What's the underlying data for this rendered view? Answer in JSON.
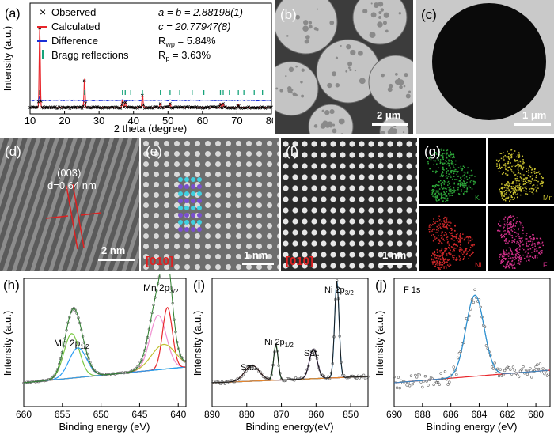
{
  "figure": {
    "panel_labels": [
      "(a)",
      "(b)",
      "(c)",
      "(d)",
      "(e)",
      "(f)",
      "(g)",
      "(h)",
      "(i)",
      "(j)"
    ],
    "colors": {
      "observed": "#000000",
      "calculated": "#e8252a",
      "difference": "#1a2fd6",
      "bragg": "#16a37a",
      "fit_blue": "#2c8fcf",
      "background_red": "#e8252a",
      "eds_K": "#2ea83a",
      "eds_Mn": "#c8c030",
      "eds_Ni": "#d0282a",
      "eds_F": "#d0308a",
      "zone_axis": "#e02020"
    }
  },
  "panel_a": {
    "ylabel": "Intensity (a.u.)",
    "xlabel": "2 theta (degree)",
    "xticks": [
      "10",
      "20",
      "30",
      "40",
      "50",
      "60",
      "70",
      "80"
    ],
    "legend": [
      "Observed",
      "Calculated",
      "Difference",
      "Bragg reflections"
    ],
    "legend_markers": [
      "×",
      "—",
      "—",
      "|"
    ],
    "params": {
      "ab": "a = b = 2.88198(1)",
      "c": "c = 20.77947(8)",
      "rwp": "R",
      "rwp_sub": "wp",
      "rwp_val": " = 5.84%",
      "rp": "R",
      "rp_sub": "p",
      "rp_val": " = 3.63%"
    }
  },
  "panel_b": {
    "scale": "2 μm"
  },
  "panel_c": {
    "scale": "1 μm"
  },
  "panel_d": {
    "plane": "(003)",
    "dspacing": "d=0.64 nm",
    "scale": "2 nm"
  },
  "panel_e": {
    "zone": "[010]",
    "scale": "1 nm"
  },
  "panel_f": {
    "zone": "[010]",
    "scale": "1 nm"
  },
  "panel_g": {
    "maps": [
      "K",
      "Mn",
      "Ni",
      "F"
    ]
  },
  "panel_h": {
    "ylabel": "Intensity (a.u.)",
    "xlabel": "Binding energy (eV)",
    "xticks": [
      "660",
      "655",
      "650",
      "645",
      "640"
    ],
    "peak1": "Mn 2p",
    "peak1_sub": "1/2",
    "peak2": "Mn 2p",
    "peak2_sub": "3/2"
  },
  "panel_i": {
    "ylabel": "Intensity (a.u.)",
    "xlabel": "Binding energy(eV)",
    "xticks": [
      "890",
      "880",
      "870",
      "860",
      "850"
    ],
    "sat1": "Sat.",
    "peak1": "Ni 2p",
    "peak1_sub": "1/2",
    "sat2": "Sat.",
    "peak2": "Ni 2p",
    "peak2_sub": "3/2"
  },
  "panel_j": {
    "ylabel": "Intensity (a.u.)",
    "xlabel": "Binding energy (eV)",
    "xticks": [
      "690",
      "688",
      "686",
      "684",
      "682",
      "680"
    ],
    "title": "F 1s"
  },
  "chart_data": [
    {
      "type": "line",
      "title": "",
      "xlabel": "2 theta (degree)",
      "ylabel": "Intensity (a.u.)",
      "xlim": [
        10,
        80
      ],
      "series": [
        {
          "name": "Observed",
          "peaks_x": [
            12.8,
            25.8,
            36.8,
            37.6,
            42.6,
            47.8,
            50.6,
            65.2,
            66.0,
            70.4
          ],
          "peaks_rel": [
            1.0,
            0.36,
            0.1,
            0.07,
            0.16,
            0.05,
            0.05,
            0.05,
            0.05,
            0.04
          ]
        },
        {
          "name": "Calculated",
          "peaks_x": [
            12.8,
            25.8,
            36.8,
            37.6,
            42.6,
            47.8,
            50.6,
            65.2,
            66.0,
            70.4
          ],
          "peaks_rel": [
            1.0,
            0.36,
            0.1,
            0.07,
            0.16,
            0.05,
            0.05,
            0.05,
            0.05,
            0.04
          ]
        },
        {
          "name": "Bragg reflections",
          "x": [
            12.8,
            25.8,
            36.8,
            37.6,
            39.2,
            42.6,
            47.8,
            50.6,
            53.4,
            57.0,
            60.4,
            65.2,
            66.0,
            67.8,
            70.4,
            72.0,
            75.0,
            77.4
          ]
        }
      ]
    },
    {
      "type": "line",
      "title": "Mn 2p",
      "xlabel": "Binding energy (eV)",
      "ylabel": "Intensity (a.u.)",
      "xlim": [
        660,
        639
      ],
      "series": [
        {
          "name": "Mn 2p1/2",
          "center": 653.8,
          "rel": 0.55
        },
        {
          "name": "Mn 2p3/2",
          "center": 641.6,
          "rel": 1.0
        }
      ]
    },
    {
      "type": "line",
      "title": "Ni 2p",
      "xlabel": "Binding energy(eV)",
      "ylabel": "Intensity (a.u.)",
      "xlim": [
        890,
        845
      ],
      "series": [
        {
          "name": "Sat. 2p1/2",
          "center": 878.5,
          "rel": 0.18
        },
        {
          "name": "Ni 2p1/2",
          "center": 871.6,
          "rel": 0.45
        },
        {
          "name": "Sat. 2p3/2",
          "center": 860.8,
          "rel": 0.35
        },
        {
          "name": "Ni 2p3/2",
          "center": 854.0,
          "rel": 1.0
        }
      ]
    },
    {
      "type": "scatter",
      "title": "F 1s",
      "xlabel": "Binding energy (eV)",
      "ylabel": "Intensity (a.u.)",
      "xlim": [
        690,
        679
      ],
      "series": [
        {
          "name": "F 1s",
          "center": 684.3,
          "rel": 1.0
        }
      ]
    }
  ]
}
